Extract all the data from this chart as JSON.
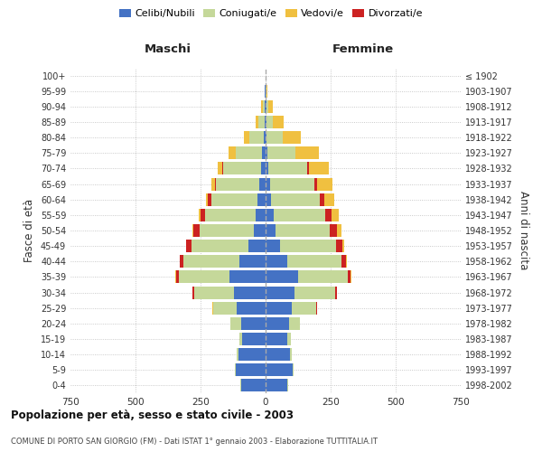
{
  "age_groups": [
    "0-4",
    "5-9",
    "10-14",
    "15-19",
    "20-24",
    "25-29",
    "30-34",
    "35-39",
    "40-44",
    "45-49",
    "50-54",
    "55-59",
    "60-64",
    "65-69",
    "70-74",
    "75-79",
    "80-84",
    "85-89",
    "90-94",
    "95-99",
    "100+"
  ],
  "birth_years": [
    "1998-2002",
    "1993-1997",
    "1988-1992",
    "1983-1987",
    "1978-1982",
    "1973-1977",
    "1968-1972",
    "1963-1967",
    "1958-1962",
    "1953-1957",
    "1948-1952",
    "1943-1947",
    "1938-1942",
    "1933-1937",
    "1928-1932",
    "1923-1927",
    "1918-1922",
    "1913-1917",
    "1908-1912",
    "1903-1907",
    "≤ 1902"
  ],
  "male_celibi": [
    95,
    115,
    105,
    90,
    95,
    110,
    120,
    140,
    100,
    65,
    45,
    38,
    30,
    25,
    18,
    14,
    8,
    5,
    3,
    2,
    0
  ],
  "male_coniugati": [
    1,
    2,
    5,
    10,
    40,
    90,
    155,
    195,
    215,
    220,
    210,
    195,
    180,
    165,
    145,
    100,
    55,
    22,
    8,
    2,
    0
  ],
  "male_vedovi": [
    0,
    0,
    0,
    0,
    0,
    1,
    0,
    1,
    1,
    2,
    3,
    5,
    8,
    12,
    18,
    28,
    18,
    10,
    5,
    1,
    0
  ],
  "male_divorziati": [
    0,
    0,
    0,
    0,
    1,
    3,
    5,
    10,
    15,
    20,
    22,
    18,
    12,
    5,
    2,
    1,
    1,
    1,
    0,
    0,
    0
  ],
  "female_celibi": [
    85,
    105,
    95,
    85,
    90,
    100,
    110,
    125,
    85,
    55,
    38,
    30,
    22,
    18,
    12,
    8,
    5,
    3,
    2,
    1,
    0
  ],
  "female_coniugati": [
    1,
    2,
    5,
    12,
    42,
    95,
    158,
    190,
    205,
    215,
    210,
    200,
    185,
    170,
    148,
    105,
    60,
    25,
    8,
    2,
    0
  ],
  "female_vedovi": [
    0,
    0,
    0,
    0,
    0,
    1,
    1,
    2,
    4,
    8,
    15,
    25,
    40,
    60,
    78,
    88,
    68,
    42,
    18,
    4,
    1
  ],
  "female_divorziati": [
    0,
    0,
    0,
    0,
    1,
    3,
    6,
    12,
    18,
    25,
    28,
    25,
    18,
    10,
    5,
    3,
    2,
    1,
    0,
    0,
    0
  ],
  "colors_celibi": "#4472C4",
  "colors_coniugati": "#c5d89a",
  "colors_vedovi": "#f0c040",
  "colors_divorziati": "#cc2222",
  "xlim": 750,
  "title_main": "Popolazione per età, sesso e stato civile - 2003",
  "title_sub": "COMUNE DI PORTO SAN GIORGIO (FM) - Dati ISTAT 1° gennaio 2003 - Elaborazione TUTTITALIA.IT",
  "ylabel_left": "Fasce di età",
  "ylabel_right": "Anni di nascita",
  "xlabel_left": "Maschi",
  "xlabel_right": "Femmine",
  "bg_color": "#ffffff",
  "grid_color": "#bbbbbb"
}
